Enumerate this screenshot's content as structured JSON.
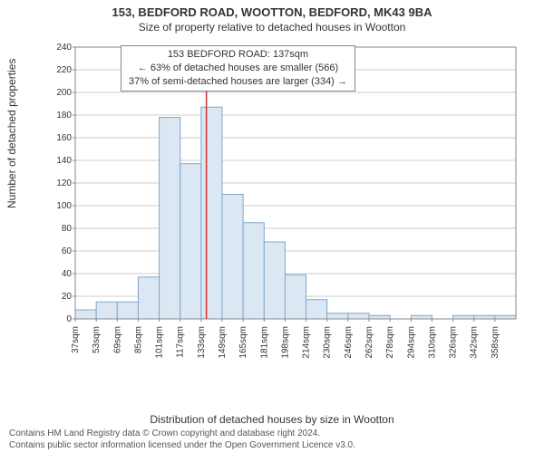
{
  "title": {
    "main": "153, BEDFORD ROAD, WOOTTON, BEDFORD, MK43 9BA",
    "sub": "Size of property relative to detached houses in Wootton",
    "fontsize_main": 13,
    "fontsize_sub": 12,
    "color": "#333333"
  },
  "ylabel": "Number of detached properties",
  "xlabel": "Distribution of detached houses by size in Wootton",
  "footer": {
    "line1": "Contains HM Land Registry data © Crown copyright and database right 2024.",
    "line2": "Contains public sector information licensed under the Open Government Licence v3.0.",
    "fontsize": 10,
    "color": "#555555"
  },
  "callout": {
    "line1": "153 BEDFORD ROAD: 137sqm",
    "line2": "← 63% of detached houses are smaller (566)",
    "line3": "37% of semi-detached houses are larger (334) →"
  },
  "chart": {
    "type": "histogram",
    "background_color": "#ffffff",
    "plot_border_color": "#888888",
    "grid_color": "#cccccc",
    "bar_fill": "#dbe7f3",
    "bar_stroke": "#7fa7cc",
    "bar_stroke_width": 1,
    "marker_line_color": "#cc3333",
    "marker_line_width": 1.5,
    "marker_x_value": 137,
    "ylim": [
      0,
      240
    ],
    "ytick_step": 20,
    "x_start": 37,
    "x_bin_width": 16,
    "x_labels": [
      "37sqm",
      "53sqm",
      "69sqm",
      "85sqm",
      "101sqm",
      "117sqm",
      "133sqm",
      "149sqm",
      "165sqm",
      "181sqm",
      "198sqm",
      "214sqm",
      "230sqm",
      "246sqm",
      "262sqm",
      "278sqm",
      "294sqm",
      "310sqm",
      "326sqm",
      "342sqm",
      "358sqm"
    ],
    "values": [
      8,
      15,
      15,
      37,
      178,
      137,
      187,
      110,
      85,
      68,
      39,
      17,
      5,
      5,
      3,
      0,
      3,
      0,
      3,
      3,
      3
    ],
    "label_fontsize": 10
  }
}
